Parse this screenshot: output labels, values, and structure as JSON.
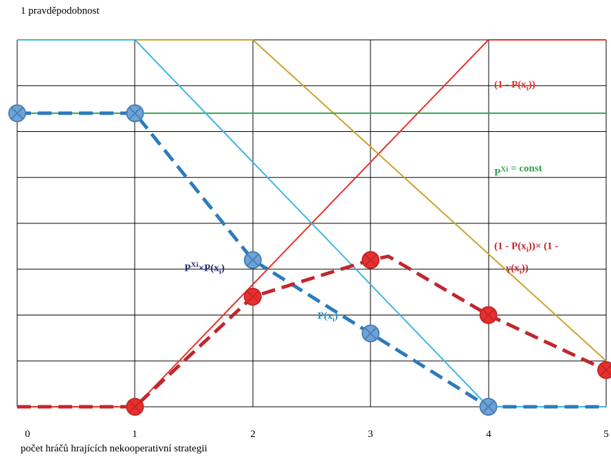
{
  "chart_data": {
    "type": "line",
    "ylabel": "1 pravděpodobnost",
    "xlabel": "počet hráčů hrajících nekooperativní strategii",
    "xticks": [
      "0",
      "1",
      "2",
      "3",
      "4",
      "5"
    ],
    "xlim": [
      0,
      5
    ],
    "ylim": [
      0,
      1
    ],
    "grid": true,
    "series": [
      {
        "key": "one_minus_p",
        "color": "#e8302a",
        "style": "solid",
        "x": [
          0,
          1,
          4,
          5
        ],
        "y": [
          0,
          0,
          1,
          1
        ]
      },
      {
        "key": "gold",
        "color": "#c9a227",
        "style": "solid",
        "x": [
          0,
          2,
          5
        ],
        "y": [
          1,
          1,
          0.125
        ]
      },
      {
        "key": "p_xi_const",
        "color": "#2ca24b",
        "style": "solid",
        "x": [
          0,
          5
        ],
        "y": [
          0.8,
          0.8
        ]
      },
      {
        "key": "p_xi",
        "color": "#3bb6e3",
        "style": "solid",
        "x": [
          0,
          1,
          4,
          5
        ],
        "y": [
          1,
          1,
          0,
          0
        ]
      },
      {
        "key": "p_xi_times_p",
        "color": "#2c7bbd",
        "style": "dashed",
        "x": [
          0,
          1,
          2,
          3,
          4,
          5
        ],
        "y": [
          0.8,
          0.8,
          0.4,
          0.2,
          0,
          0
        ],
        "markers": [
          0,
          1,
          2,
          3,
          4
        ]
      },
      {
        "key": "product_red",
        "color": "#c1272d",
        "style": "dashed",
        "x": [
          0,
          1,
          2,
          3,
          3.15,
          4,
          5
        ],
        "y": [
          0,
          0,
          0.3,
          0.4,
          0.41,
          0.25,
          0.1
        ],
        "markers": [
          1,
          2,
          3,
          5,
          6
        ]
      }
    ],
    "annotations": [
      {
        "text": "(1 - P(x",
        "sub": "i",
        "tail": "))",
        "color": "#e8302a",
        "x": 4.05,
        "y": 0.87
      },
      {
        "text": "P",
        "sup": "Xi",
        "tail": " = const",
        "color": "#2ca24b",
        "x": 4.05,
        "y": 0.63
      },
      {
        "text": "(1 - P(x",
        "sub": "i",
        "tail": "))× (1 -",
        "color": "#c1272d",
        "x": 4.05,
        "y": 0.43
      },
      {
        "text": "γ(x",
        "sub": "i",
        "tail": "))",
        "color": "#c1272d",
        "x": 4.15,
        "y": 0.37
      },
      {
        "text": "P",
        "sup": "Xi",
        "mid": "×P(x",
        "sub": "i",
        "tail": ")",
        "color": "#1f2d6e",
        "x": 1.42,
        "y": 0.37
      },
      {
        "text": "P(x",
        "sub": "i",
        "tail": ")",
        "color": "#2c8fc6",
        "x": 2.55,
        "y": 0.24
      }
    ]
  }
}
